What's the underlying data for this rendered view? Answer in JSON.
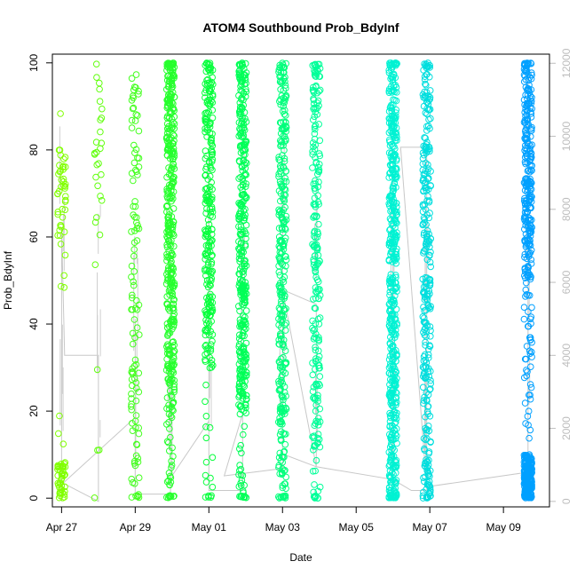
{
  "chart_data": {
    "type": "scatter",
    "title": "ATOM4 Southbound Prob_BdyInf",
    "xlabel": "Date",
    "ylabel": "Prob_BdyInf",
    "x_ticks": [
      "Apr 27",
      "Apr 29",
      "May 01",
      "May 03",
      "May 05",
      "May 07",
      "May 09"
    ],
    "y_ticks": [
      "0",
      "20",
      "40",
      "60",
      "80",
      "100"
    ],
    "y2_ticks": [
      "0",
      "2000",
      "4000",
      "6000",
      "8000",
      "10000",
      "12000"
    ],
    "xlim": [
      "2018-04-26 18:00",
      "2018-05-10 06:00"
    ],
    "ylim": [
      -2,
      102
    ],
    "y2lim": [
      -150,
      12250
    ],
    "secondary_axis_color": "#bdbdbd",
    "point_color_scale": [
      "#80ff00",
      "#00ff40",
      "#00ffcc",
      "#00a0ff"
    ],
    "clusters": [
      {
        "x": "2018-04-27 00:00",
        "n": 90,
        "dense": [
          [
            0,
            8
          ],
          [
            60,
            80
          ]
        ]
      },
      {
        "x": "2018-04-28 00:00",
        "n": 30,
        "dense": [
          [
            60,
            100
          ]
        ]
      },
      {
        "x": "2018-04-29 00:00",
        "n": 110,
        "dense": [
          [
            0,
            100
          ]
        ]
      },
      {
        "x": "2018-04-29 23:00",
        "n": 420,
        "dense": [
          [
            20,
            100
          ]
        ]
      },
      {
        "x": "2018-05-01 00:00",
        "n": 260,
        "dense": [
          [
            30,
            100
          ]
        ]
      },
      {
        "x": "2018-05-01 22:00",
        "n": 380,
        "dense": [
          [
            20,
            100
          ]
        ]
      },
      {
        "x": "2018-05-03 00:00",
        "n": 320,
        "dense": [
          [
            0,
            100
          ]
        ]
      },
      {
        "x": "2018-05-03 22:00",
        "n": 220,
        "dense": [
          [
            10,
            100
          ]
        ]
      },
      {
        "x": "2018-05-06 00:00",
        "n": 520,
        "dense": [
          [
            0,
            100
          ]
        ]
      },
      {
        "x": "2018-05-06 22:00",
        "n": 300,
        "dense": [
          [
            0,
            100
          ]
        ]
      },
      {
        "x": "2018-05-09 16:00",
        "n": 520,
        "dense": [
          [
            0,
            10
          ],
          [
            50,
            100
          ]
        ]
      }
    ],
    "cumulative_count_line": [
      [
        "2018-04-27 00:00",
        0
      ],
      [
        "2018-04-27 00:00",
        7500
      ],
      [
        "2018-04-27 02:00",
        4000
      ],
      [
        "2018-04-28 00:00",
        4000
      ],
      [
        "2018-04-28 00:00",
        0
      ],
      [
        "2018-04-27 01:00",
        500
      ],
      [
        "2018-04-29 00:00",
        2300
      ],
      [
        "2018-04-29 00:00",
        5000
      ],
      [
        "2018-04-29 00:00",
        200
      ],
      [
        "2018-04-29 23:00",
        200
      ],
      [
        "2018-04-29 23:00",
        1500
      ],
      [
        "2018-04-30 00:00",
        3500
      ],
      [
        "2018-04-30 00:00",
        700
      ],
      [
        "2018-05-01 00:00",
        2200
      ],
      [
        "2018-05-01 00:00",
        9500
      ],
      [
        "2018-05-01 00:00",
        300
      ],
      [
        "2018-05-01 22:00",
        300
      ],
      [
        "2018-05-01 22:00",
        2400
      ],
      [
        "2018-05-01 10:00",
        700
      ],
      [
        "2018-05-03 00:00",
        900
      ],
      [
        "2018-05-03 00:00",
        8000
      ],
      [
        "2018-05-03 00:00",
        1300
      ],
      [
        "2018-05-03 22:00",
        950
      ],
      [
        "2018-05-03 22:00",
        5400
      ],
      [
        "2018-05-03 00:00",
        5800
      ],
      [
        "2018-05-03 22:00",
        950
      ],
      [
        "2018-05-06 00:00",
        600
      ],
      [
        "2018-05-06 00:00",
        9600
      ],
      [
        "2018-05-06 00:00",
        600
      ],
      [
        "2018-05-06 12:00",
        300
      ],
      [
        "2018-05-06 22:00",
        300
      ],
      [
        "2018-05-06 22:00",
        9700
      ],
      [
        "2018-05-06 05:00",
        9700
      ],
      [
        "2018-05-06 22:00",
        400
      ],
      [
        "2018-05-09 16:00",
        800
      ],
      [
        "2018-05-09 16:00",
        11800
      ]
    ]
  }
}
